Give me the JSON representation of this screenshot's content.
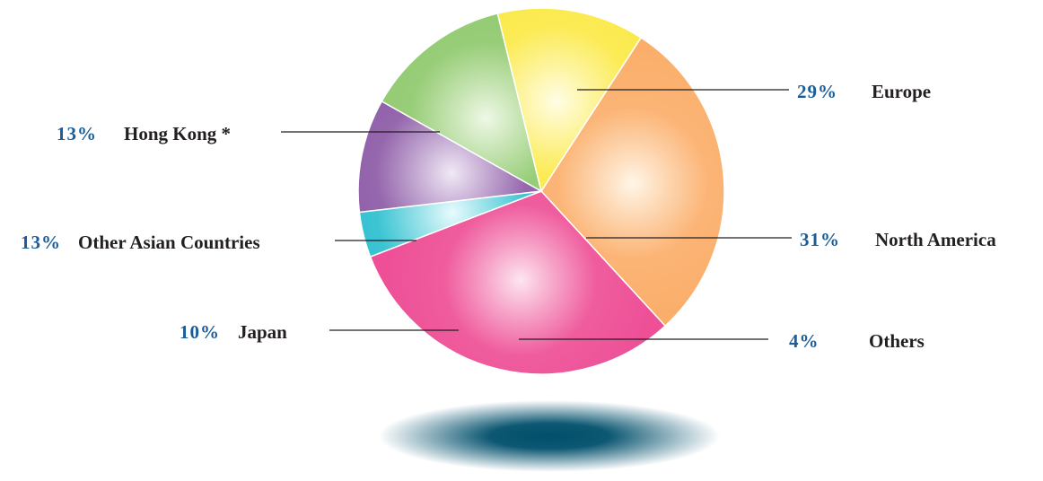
{
  "chart_data": {
    "type": "pie",
    "title": "",
    "slices": [
      {
        "label": "Europe",
        "value_label": "29%",
        "value": 29,
        "color": "#fbae6a",
        "highlight": "#fff6e8"
      },
      {
        "label": "North America",
        "value_label": "31%",
        "value": 31,
        "color": "#ee4f96",
        "highlight": "#fde6f0"
      },
      {
        "label": "Others",
        "value_label": "4%",
        "value": 4,
        "color": "#2bbfcf",
        "highlight": "#e9fbfd"
      },
      {
        "label": "Japan",
        "value_label": "10%",
        "value": 10,
        "color": "#8c5aa6",
        "highlight": "#f1e9f6"
      },
      {
        "label": "Other Asian Countries",
        "value_label": "13%",
        "value": 13,
        "color": "#8fc96d",
        "highlight": "#eff8e6"
      },
      {
        "label": "Hong Kong *",
        "value_label": "13%",
        "value": 13,
        "color": "#fbe945",
        "highlight": "#fffde6"
      }
    ],
    "legend": "none",
    "percent_color": "#1a5d9a",
    "shadow_color": "#004f6b"
  }
}
